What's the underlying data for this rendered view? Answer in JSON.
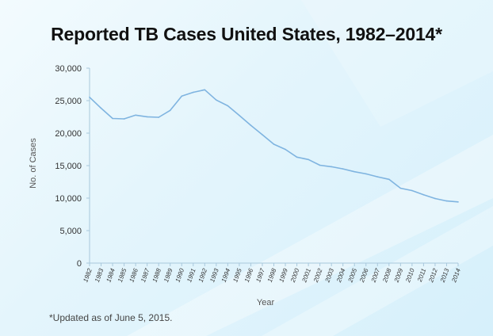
{
  "footnote": "*Updated as of June 5, 2015.",
  "chart_data": {
    "type": "line",
    "title": "Reported TB Cases United States, 1982–2014*",
    "xlabel": "Year",
    "ylabel": "No. of Cases",
    "ylim": [
      0,
      30000
    ],
    "yticks": [
      "0",
      "5,000",
      "10,000",
      "15,000",
      "20,000",
      "25,000",
      "30,000"
    ],
    "ytick_values": [
      0,
      5000,
      10000,
      15000,
      20000,
      25000,
      30000
    ],
    "grid": false,
    "line_color": "#7fb4e0",
    "x": [
      "1982",
      "1983",
      "1984",
      "1985",
      "1986",
      "1987",
      "1988",
      "1989",
      "1990",
      "1991",
      "1992",
      "1993",
      "1994",
      "1995",
      "1996",
      "1997",
      "1998",
      "1999",
      "2000",
      "2001",
      "2002",
      "2003",
      "2004",
      "2005",
      "2006",
      "2007",
      "2008",
      "2009",
      "2010",
      "2011",
      "2012",
      "2013",
      "2014"
    ],
    "series": [
      {
        "values": [
          25520,
          23846,
          22255,
          22201,
          22768,
          22517,
          22436,
          23495,
          25701,
          26283,
          26673,
          25102,
          24206,
          22726,
          21210,
          19751,
          18287,
          17500,
          16309,
          15945,
          15055,
          14835,
          14499,
          14065,
          13728,
          13280,
          12895,
          11523,
          11159,
          10510,
          9945,
          9561,
          9412
        ]
      }
    ]
  }
}
